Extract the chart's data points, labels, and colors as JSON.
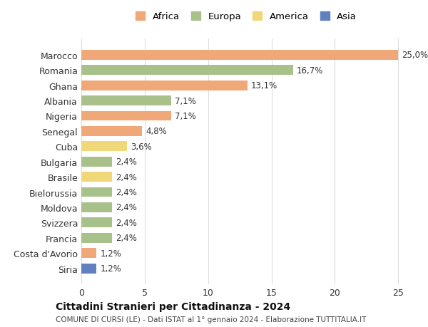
{
  "countries": [
    "Marocco",
    "Romania",
    "Ghana",
    "Albania",
    "Nigeria",
    "Senegal",
    "Cuba",
    "Bulgaria",
    "Brasile",
    "Bielorussia",
    "Moldova",
    "Svizzera",
    "Francia",
    "Costa d'Avorio",
    "Siria"
  ],
  "values": [
    25.0,
    16.7,
    13.1,
    7.1,
    7.1,
    4.8,
    3.6,
    2.4,
    2.4,
    2.4,
    2.4,
    2.4,
    2.4,
    1.2,
    1.2
  ],
  "labels": [
    "25,0%",
    "16,7%",
    "13,1%",
    "7,1%",
    "7,1%",
    "4,8%",
    "3,6%",
    "2,4%",
    "2,4%",
    "2,4%",
    "2,4%",
    "2,4%",
    "2,4%",
    "1,2%",
    "1,2%"
  ],
  "continents": [
    "Africa",
    "Europa",
    "Africa",
    "Europa",
    "Africa",
    "Africa",
    "America",
    "Europa",
    "America",
    "Europa",
    "Europa",
    "Europa",
    "Europa",
    "Africa",
    "Asia"
  ],
  "colors": {
    "Africa": "#F0A878",
    "Europa": "#A8C08A",
    "America": "#F0D878",
    "Asia": "#6080C0"
  },
  "legend_order": [
    "Africa",
    "Europa",
    "America",
    "Asia"
  ],
  "title": "Cittadini Stranieri per Cittadinanza - 2024",
  "subtitle": "COMUNE DI CURSI (LE) - Dati ISTAT al 1° gennaio 2024 - Elaborazione TUTTITALIA.IT",
  "xlim": [
    0,
    26
  ],
  "xticks": [
    0,
    5,
    10,
    15,
    20,
    25
  ],
  "bg_color": "#ffffff",
  "grid_color": "#dddddd",
  "bar_height": 0.65
}
